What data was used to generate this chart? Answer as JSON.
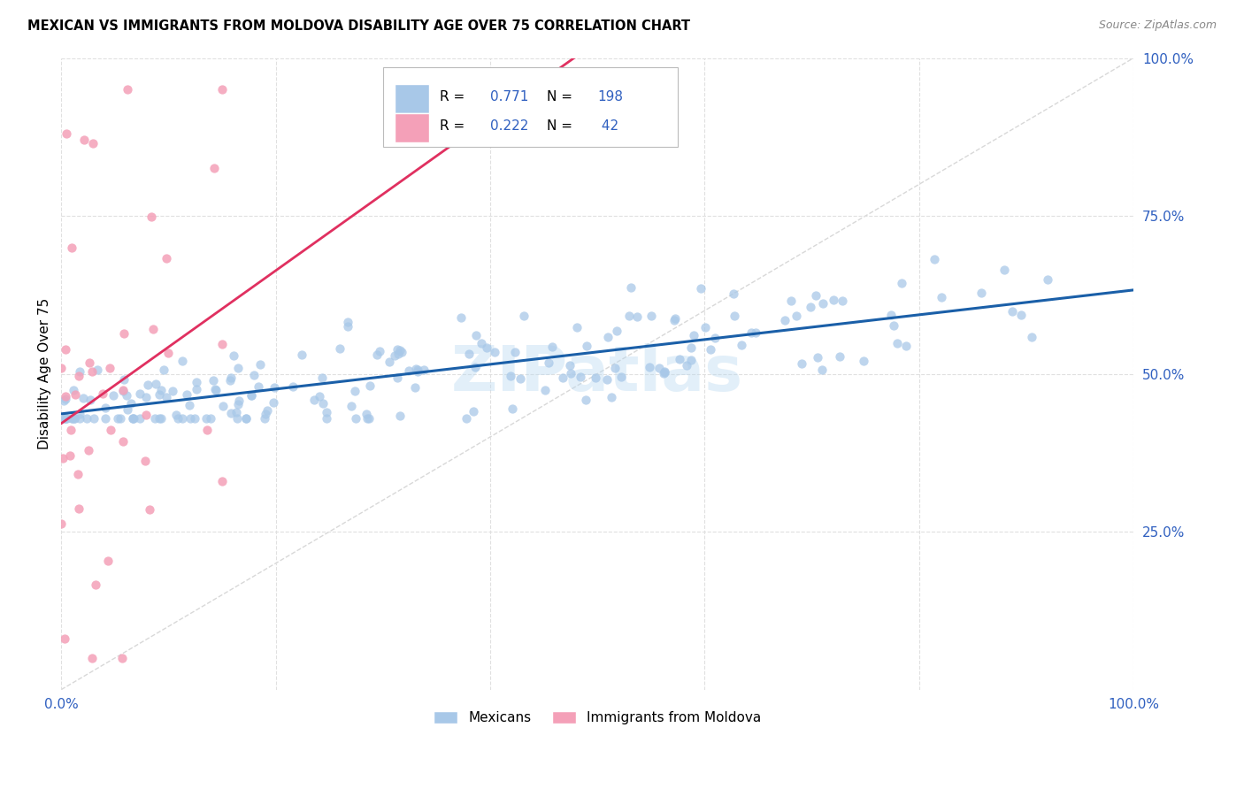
{
  "title": "MEXICAN VS IMMIGRANTS FROM MOLDOVA DISABILITY AGE OVER 75 CORRELATION CHART",
  "source": "Source: ZipAtlas.com",
  "ylabel": "Disability Age Over 75",
  "watermark": "ZIPatlas",
  "blue_R": 0.771,
  "blue_N": 198,
  "pink_R": 0.222,
  "pink_N": 42,
  "blue_color": "#a8c8e8",
  "pink_color": "#f4a0b8",
  "blue_line_color": "#1a5fa8",
  "pink_line_color": "#e03060",
  "diagonal_color": "#c8c8c8",
  "axis_color": "#3060c0",
  "background_color": "#ffffff",
  "grid_color": "#e0e0e0",
  "legend_labels": [
    "Mexicans",
    "Immigrants from Moldova"
  ],
  "blue_scatter_seed": 42,
  "pink_scatter_seed": 123
}
